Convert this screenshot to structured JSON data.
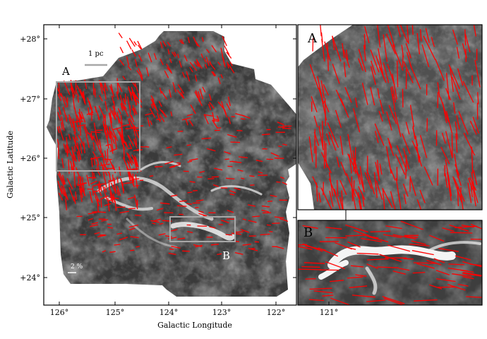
{
  "figure": {
    "xlabel": "Galactic Longitude",
    "ylabel": "Galactic Latitude",
    "x_ticks": [
      "126°",
      "125°",
      "124°",
      "123°",
      "122°",
      "121°"
    ],
    "y_ticks": [
      "+28°",
      "+27°",
      "+26°",
      "+25°",
      "+24°"
    ],
    "scalebar_label": "1 pc",
    "pol_key_label": "2 %",
    "box_a_label": "A",
    "box_b_label": "B",
    "inset_a_label": "A",
    "inset_b_label": "B",
    "colors": {
      "vectors": "#ff0000",
      "boxes": "#a8a8a8",
      "frame": "#000000",
      "background": "#ffffff"
    }
  }
}
